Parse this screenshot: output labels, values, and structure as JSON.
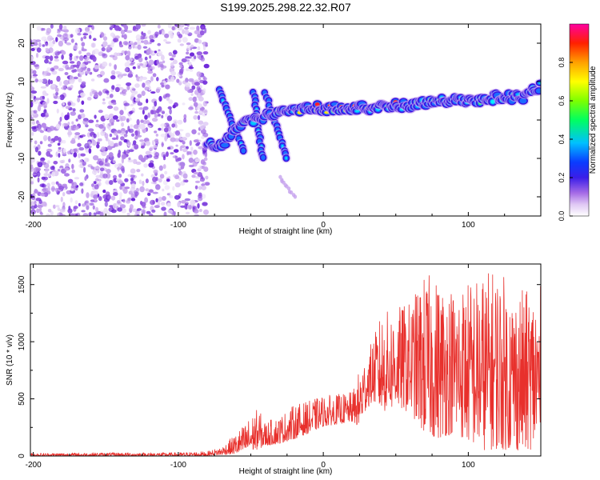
{
  "title": "S199.2025.298.22.32.R07",
  "chart_data": [
    {
      "type": "heatmap",
      "name": "spectrogram",
      "xlabel": "Height of straight line (km)",
      "ylabel": "Frequency (Hz)",
      "xlim": [
        -202,
        150
      ],
      "ylim": [
        -25,
        25
      ],
      "xticks": [
        -200,
        -100,
        0,
        100
      ],
      "xtick_labels": [
        "-200",
        "-100",
        "0",
        "100"
      ],
      "yticks": [
        -20,
        -10,
        0,
        10,
        20
      ],
      "ytick_labels": [
        "-20",
        "-10",
        "0",
        "10",
        "20"
      ],
      "colorbar": {
        "label": "Normalized spectral amplitude",
        "range": [
          0,
          1
        ],
        "ticks": [
          0,
          0.2,
          0.4,
          0.6,
          0.8
        ],
        "tick_labels": [
          "0.0",
          "0.2",
          "0.4",
          "0.6",
          "0.8"
        ]
      },
      "features": [
        {
          "name": "noise field",
          "x_range": [
            -202,
            -80
          ],
          "y_range": [
            -25,
            25
          ],
          "amplitude": 0.15
        },
        {
          "name": "main ridge",
          "points": [
            [
              -80,
              -6
            ],
            [
              -70,
              -7
            ],
            [
              -60,
              -2
            ],
            [
              -40,
              1
            ],
            [
              -20,
              3
            ],
            [
              0,
              3
            ],
            [
              20,
              3
            ],
            [
              40,
              3.5
            ],
            [
              60,
              4
            ],
            [
              80,
              5
            ],
            [
              100,
              5
            ],
            [
              120,
              6
            ],
            [
              140,
              6
            ],
            [
              150,
              9
            ]
          ],
          "peak_amplitude": 0.95
        },
        {
          "name": "descending streak 1",
          "points": [
            [
              -72,
              8
            ],
            [
              -55,
              -8
            ]
          ]
        },
        {
          "name": "descending streak 2",
          "points": [
            [
              -48,
              7
            ],
            [
              -42,
              -10
            ]
          ]
        },
        {
          "name": "descending streak 3",
          "points": [
            [
              -40,
              7
            ],
            [
              -25,
              -10
            ]
          ]
        },
        {
          "name": "faint streak",
          "points": [
            [
              -30,
              -15
            ],
            [
              -20,
              -20
            ]
          ]
        }
      ]
    },
    {
      "type": "line",
      "name": "snr",
      "xlabel": "Height of straight line (km)",
      "ylabel": "SNR (10 * v/v)",
      "xlim": [
        -202,
        150
      ],
      "ylim": [
        0,
        1680
      ],
      "xticks": [
        -200,
        -100,
        0,
        100
      ],
      "xtick_labels": [
        "-200",
        "-100",
        "0",
        "100"
      ],
      "yticks": [
        0,
        500,
        1000,
        1500
      ],
      "ytick_labels": [
        "0",
        "500",
        "1000",
        "1500"
      ],
      "color": "#e8302c",
      "envelope": {
        "x": [
          -202,
          -150,
          -100,
          -80,
          -70,
          -60,
          -45,
          -40,
          -30,
          -20,
          -10,
          0,
          10,
          20,
          25,
          30,
          35,
          40,
          50,
          60,
          70,
          80,
          90,
          100,
          110,
          120,
          130,
          140,
          150
        ],
        "low": [
          0,
          0,
          0,
          2,
          10,
          20,
          60,
          90,
          110,
          150,
          200,
          260,
          280,
          300,
          250,
          420,
          470,
          380,
          420,
          380,
          180,
          150,
          200,
          120,
          50,
          60,
          50,
          40,
          100
        ],
        "high": [
          25,
          30,
          30,
          40,
          80,
          200,
          420,
          300,
          350,
          450,
          480,
          530,
          540,
          560,
          760,
          900,
          1050,
          1250,
          1300,
          1350,
          1600,
          1550,
          1500,
          1550,
          1600,
          1660,
          1500,
          1450,
          1500
        ]
      }
    }
  ]
}
